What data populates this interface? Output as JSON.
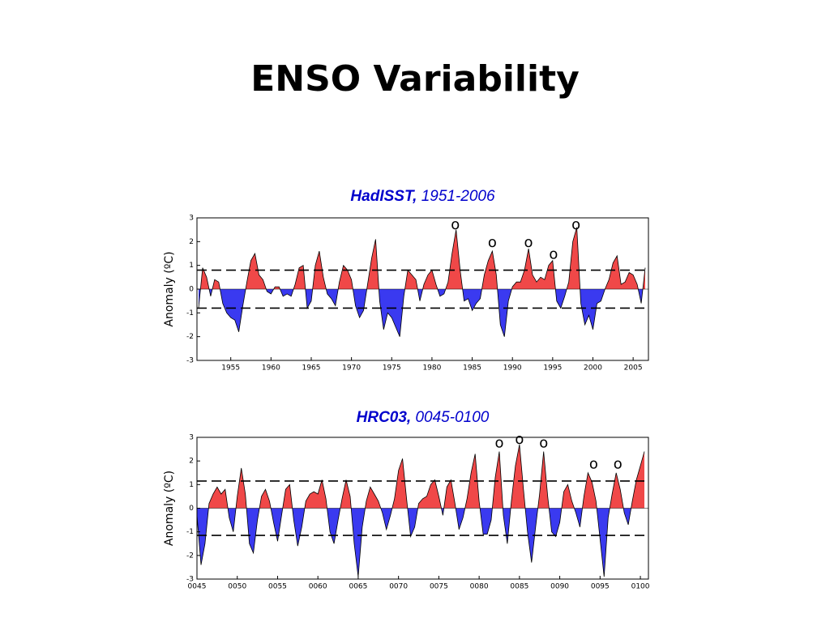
{
  "title": "ENSO Variability",
  "chart_data": [
    {
      "type": "area",
      "title": "HadISST,",
      "subtitle": "1951-2006",
      "y_label": "Anomaly (ºC)",
      "xlim": [
        1950.8,
        2006.9
      ],
      "xticks": [
        1955,
        1960,
        1965,
        1970,
        1975,
        1980,
        1985,
        1990,
        1995,
        2000,
        2005
      ],
      "ylim": [
        -3,
        3
      ],
      "yticks": [
        -3,
        -2,
        -1,
        0,
        1,
        2,
        3
      ],
      "thresholds": [
        0.8,
        -0.8
      ],
      "positive_color": "#f04848",
      "negative_color": "#3a3af0",
      "x": [
        1951,
        1951.5,
        1952,
        1952.5,
        1953,
        1953.5,
        1954,
        1954.5,
        1955,
        1955.5,
        1956,
        1956.5,
        1957,
        1957.5,
        1958,
        1958.5,
        1959,
        1959.5,
        1960,
        1960.5,
        1961,
        1961.5,
        1962,
        1962.5,
        1963,
        1963.5,
        1964,
        1964.5,
        1965,
        1965.5,
        1966,
        1966.5,
        1967,
        1967.5,
        1968,
        1968.5,
        1969,
        1969.5,
        1970,
        1970.5,
        1971,
        1971.5,
        1972,
        1972.5,
        1973,
        1973.5,
        1974,
        1974.5,
        1975,
        1975.5,
        1976,
        1976.5,
        1977,
        1977.5,
        1978,
        1978.5,
        1979,
        1979.5,
        1980,
        1980.5,
        1981,
        1981.5,
        1982,
        1982.5,
        1983,
        1983.5,
        1984,
        1984.5,
        1985,
        1985.5,
        1986,
        1986.5,
        1987,
        1987.5,
        1988,
        1988.5,
        1989,
        1989.5,
        1990,
        1990.5,
        1991,
        1991.5,
        1992,
        1992.5,
        1993,
        1993.5,
        1994,
        1994.5,
        1995,
        1995.5,
        1996,
        1996.5,
        1997,
        1997.5,
        1998,
        1998.5,
        1999,
        1999.5,
        2000,
        2000.5,
        2001,
        2001.5,
        2002,
        2002.5,
        2003,
        2003.5,
        2004,
        2004.5,
        2005,
        2005.5,
        2006,
        2006.5
      ],
      "values": [
        -0.8,
        0.9,
        0.5,
        -0.3,
        0.4,
        0.3,
        -0.6,
        -1.0,
        -1.2,
        -1.3,
        -1.8,
        -0.7,
        0.3,
        1.2,
        1.5,
        0.6,
        0.4,
        -0.1,
        -0.2,
        0.1,
        0.1,
        -0.3,
        -0.2,
        -0.3,
        0.2,
        0.9,
        1.0,
        -0.8,
        -0.5,
        1.0,
        1.6,
        0.5,
        -0.2,
        -0.4,
        -0.7,
        0.3,
        1.0,
        0.8,
        0.4,
        -0.7,
        -1.2,
        -0.9,
        0.2,
        1.3,
        2.1,
        -0.5,
        -1.7,
        -1.0,
        -1.2,
        -1.6,
        -2.0,
        -0.3,
        0.8,
        0.6,
        0.4,
        -0.5,
        0.2,
        0.6,
        0.8,
        0.2,
        -0.3,
        -0.2,
        0.3,
        1.5,
        2.5,
        0.8,
        -0.5,
        -0.4,
        -0.9,
        -0.6,
        -0.4,
        0.6,
        1.2,
        1.6,
        0.6,
        -1.5,
        -2.0,
        -0.5,
        0.1,
        0.3,
        0.3,
        0.8,
        1.7,
        0.6,
        0.3,
        0.5,
        0.4,
        1.0,
        1.2,
        -0.5,
        -0.8,
        -0.3,
        0.3,
        2.0,
        2.6,
        -0.6,
        -1.5,
        -1.1,
        -1.7,
        -0.6,
        -0.5,
        0.0,
        0.4,
        1.1,
        1.4,
        0.2,
        0.3,
        0.7,
        0.6,
        0.2,
        -0.6,
        0.9
      ],
      "annotations": [
        {
          "x": 1982.9,
          "y": 2.7,
          "label": "o"
        },
        {
          "x": 1987.5,
          "y": 1.95,
          "label": "o"
        },
        {
          "x": 1992,
          "y": 1.95,
          "label": "o"
        },
        {
          "x": 1995.1,
          "y": 1.45,
          "label": "o"
        },
        {
          "x": 1997.9,
          "y": 2.7,
          "label": "o"
        }
      ]
    },
    {
      "type": "area",
      "title": "HRC03,",
      "subtitle": "0045-0100",
      "y_label": "Anomaly (ºC)",
      "xlim": [
        45,
        101
      ],
      "xticks": [
        {
          "value": 45,
          "label": "0045"
        },
        {
          "value": 50,
          "label": "0050"
        },
        {
          "value": 55,
          "label": "0055"
        },
        {
          "value": 60,
          "label": "0060"
        },
        {
          "value": 65,
          "label": "0065"
        },
        {
          "value": 70,
          "label": "0070"
        },
        {
          "value": 75,
          "label": "0075"
        },
        {
          "value": 80,
          "label": "0080"
        },
        {
          "value": 85,
          "label": "0085"
        },
        {
          "value": 90,
          "label": "0090"
        },
        {
          "value": 95,
          "label": "0095"
        },
        {
          "value": 100,
          "label": "0100"
        }
      ],
      "ylim": [
        -3,
        3
      ],
      "yticks": [
        -3,
        -2,
        -1,
        0,
        1,
        2,
        3
      ],
      "thresholds": [
        1.15,
        -1.15
      ],
      "positive_color": "#f04848",
      "negative_color": "#3a3af0",
      "x": [
        45,
        45.5,
        46,
        46.5,
        47,
        47.5,
        48,
        48.5,
        49,
        49.5,
        50,
        50.5,
        51,
        51.5,
        52,
        52.5,
        53,
        53.5,
        54,
        54.5,
        55,
        55.5,
        56,
        56.5,
        57,
        57.5,
        58,
        58.5,
        59,
        59.5,
        60,
        60.5,
        61,
        61.5,
        62,
        62.5,
        63,
        63.5,
        64,
        64.5,
        65,
        65.5,
        66,
        66.5,
        67,
        67.5,
        68,
        68.5,
        69,
        69.5,
        70,
        70.5,
        71,
        71.5,
        72,
        72.5,
        73,
        73.5,
        74,
        74.5,
        75,
        75.5,
        76,
        76.5,
        77,
        77.5,
        78,
        78.5,
        79,
        79.5,
        80,
        80.5,
        81,
        81.5,
        82,
        82.5,
        83,
        83.5,
        84,
        84.5,
        85,
        85.5,
        86,
        86.5,
        87,
        87.5,
        88,
        88.5,
        89,
        89.5,
        90,
        90.5,
        91,
        91.5,
        92,
        92.5,
        93,
        93.5,
        94,
        94.5,
        95,
        95.5,
        96,
        96.5,
        97,
        97.5,
        98,
        98.5,
        99,
        99.5,
        100,
        100.5
      ],
      "values": [
        -0.3,
        -2.4,
        -1.5,
        0.2,
        0.6,
        0.9,
        0.6,
        0.8,
        -0.4,
        -1.0,
        0.5,
        1.7,
        0.6,
        -1.5,
        -1.9,
        -0.5,
        0.5,
        0.8,
        0.3,
        -0.6,
        -1.4,
        -0.3,
        0.8,
        1.0,
        -0.5,
        -1.6,
        -0.8,
        0.3,
        0.6,
        0.7,
        0.6,
        1.2,
        0.4,
        -1.0,
        -1.5,
        -0.5,
        0.4,
        1.2,
        0.5,
        -1.5,
        -2.9,
        -0.8,
        0.3,
        0.9,
        0.6,
        0.3,
        -0.2,
        -0.9,
        -0.3,
        0.4,
        1.6,
        2.1,
        0.4,
        -1.2,
        -0.8,
        0.2,
        0.4,
        0.5,
        1.0,
        1.2,
        0.5,
        -0.3,
        0.9,
        1.2,
        0.2,
        -0.9,
        -0.4,
        0.4,
        1.5,
        2.3,
        0.3,
        -1.1,
        -1.1,
        -0.5,
        1.3,
        2.4,
        -0.3,
        -1.5,
        0.3,
        1.8,
        2.7,
        0.8,
        -1.0,
        -2.3,
        -0.8,
        0.6,
        2.4,
        0.5,
        -1.0,
        -1.2,
        -0.6,
        0.7,
        1.0,
        0.3,
        -0.2,
        -0.8,
        0.5,
        1.5,
        1.1,
        0.3,
        -1.3,
        -2.9,
        -0.4,
        0.6,
        1.5,
        0.8,
        -0.2,
        -0.7,
        0.3,
        1.2,
        1.8,
        2.4
      ],
      "annotations": [
        {
          "x": 82.5,
          "y": 2.75,
          "label": "o"
        },
        {
          "x": 85,
          "y": 2.9,
          "label": "o"
        },
        {
          "x": 88,
          "y": 2.75,
          "label": "o"
        },
        {
          "x": 94.2,
          "y": 1.85,
          "label": "o"
        },
        {
          "x": 97.2,
          "y": 1.85,
          "label": "o"
        }
      ]
    }
  ]
}
